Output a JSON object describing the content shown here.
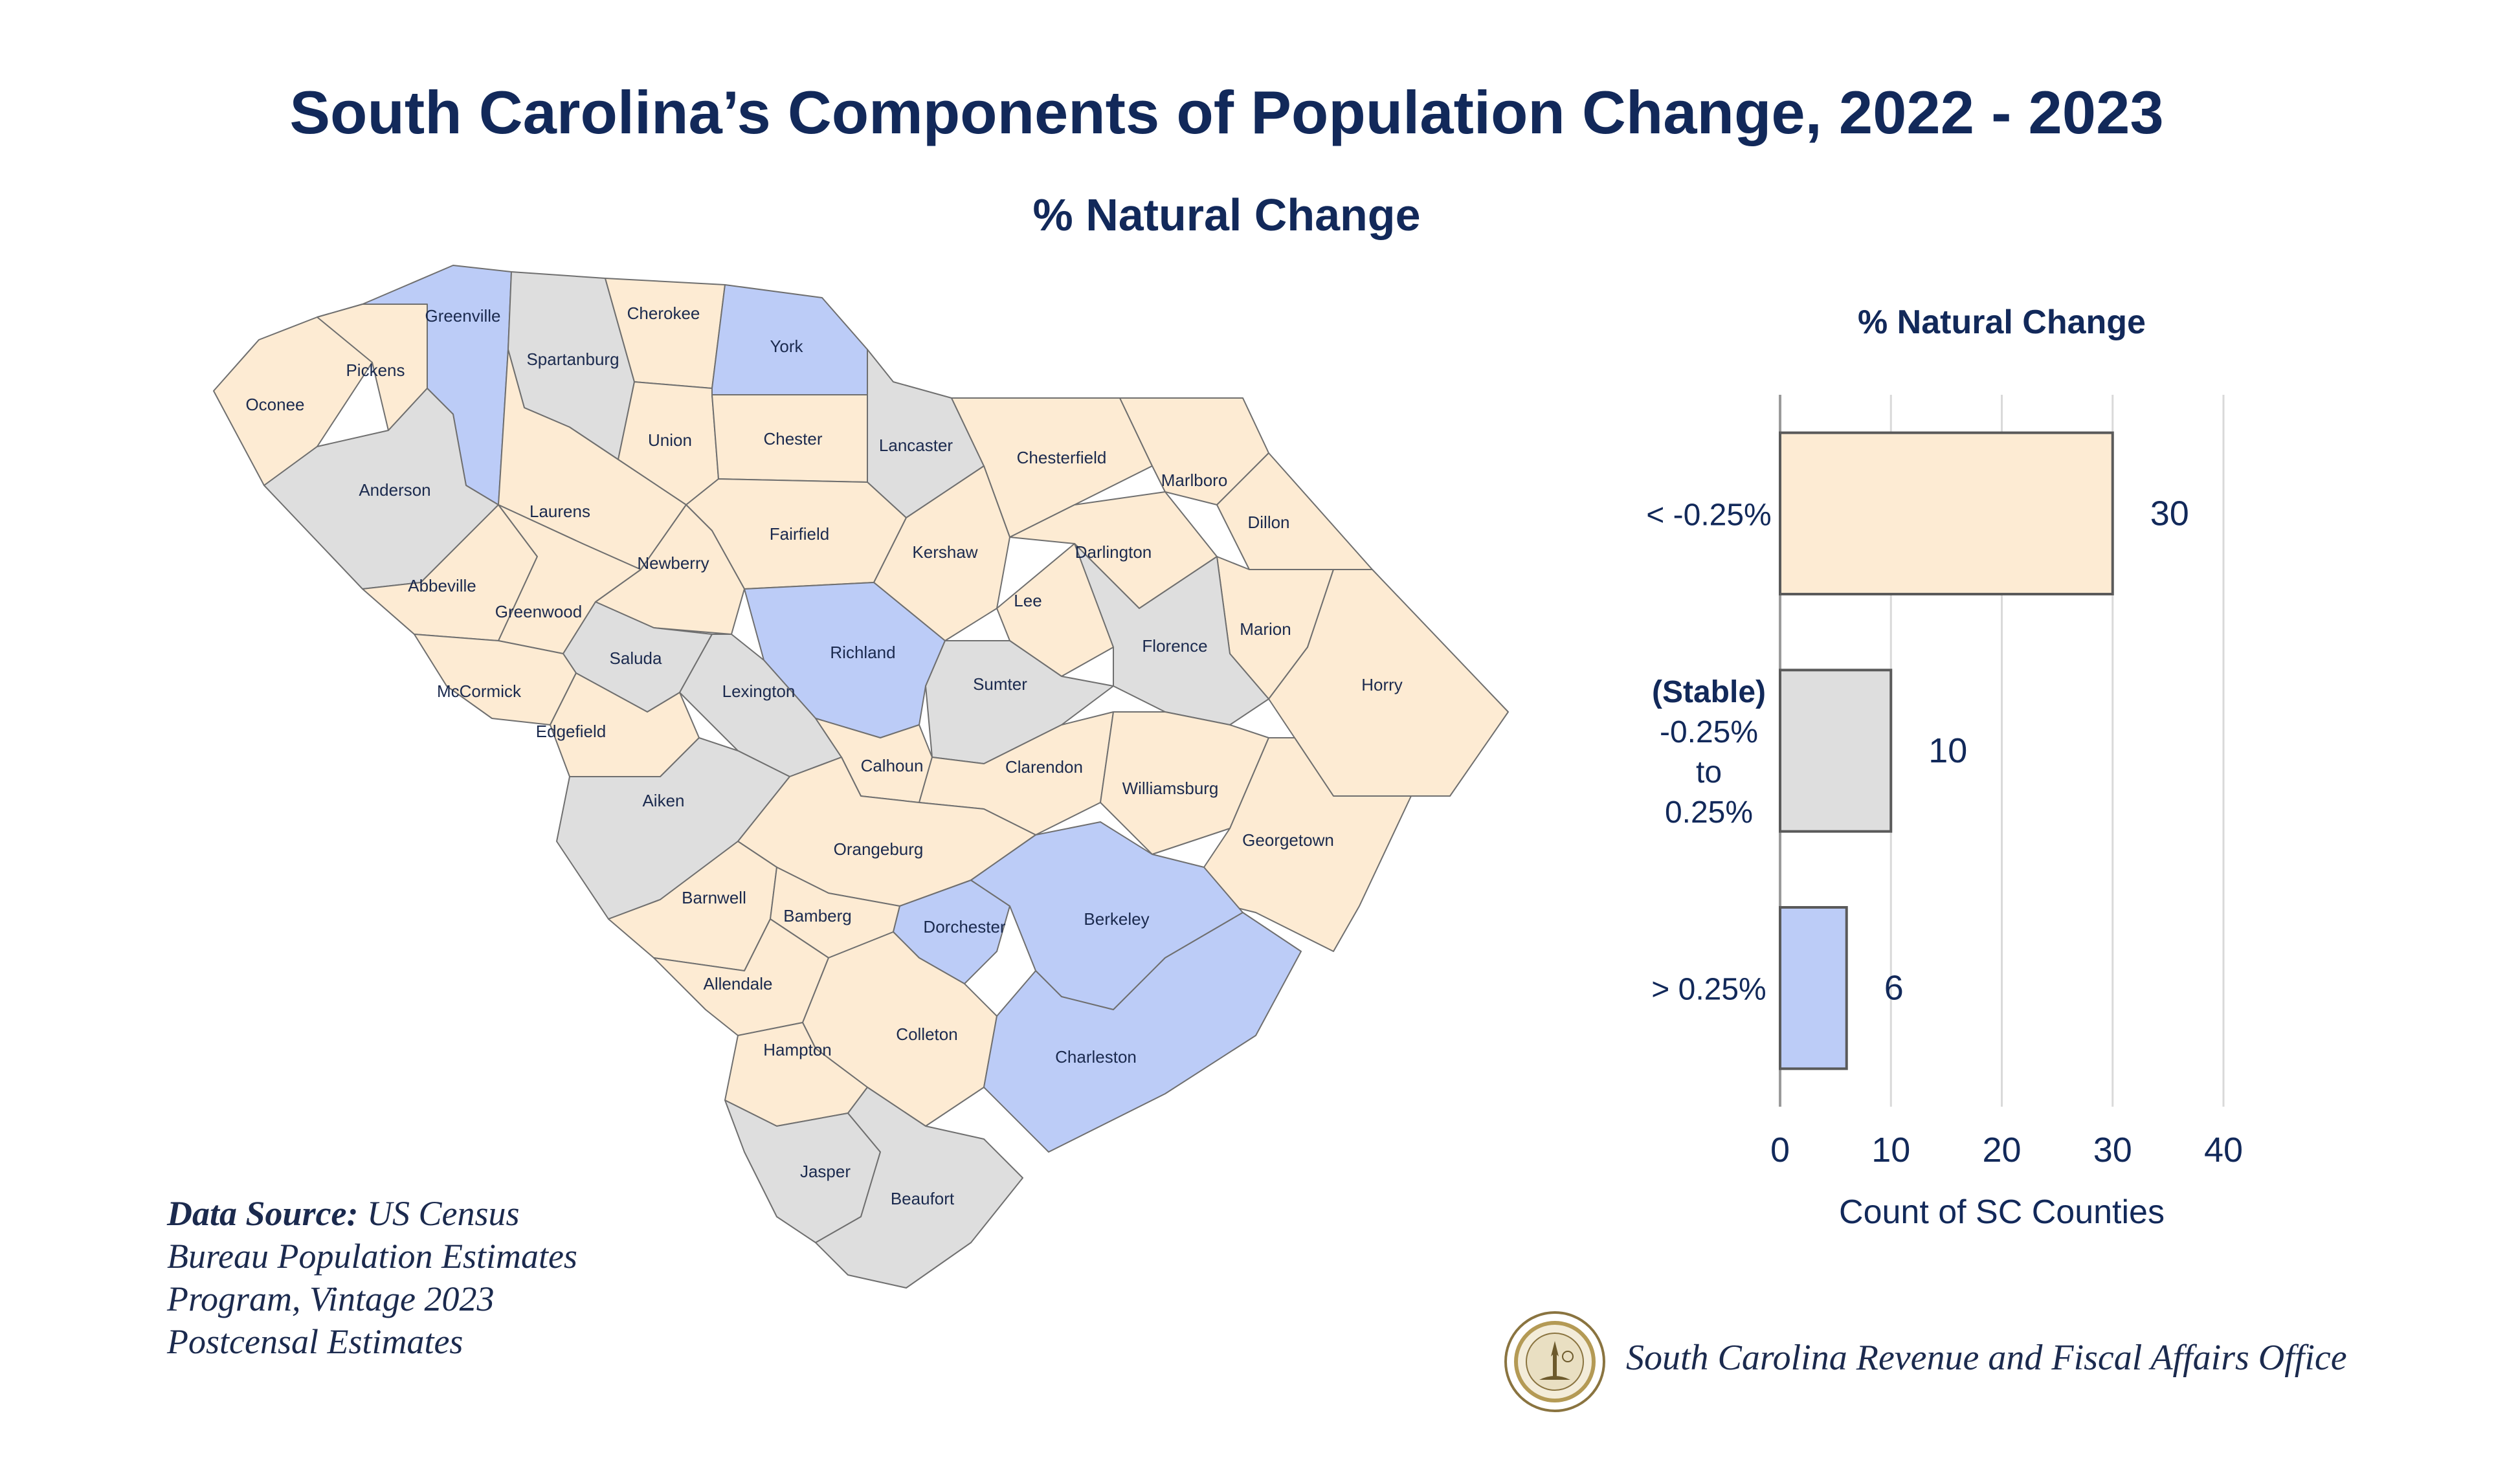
{
  "title": "South Carolina’s Components of Population Change, 2022 - 2023",
  "subtitle": "% Natural Change",
  "colors": {
    "decline": "#fdebd3",
    "stable": "#dedede",
    "growth": "#bcccf7",
    "border": "#6f6f6f",
    "text": "#12295a"
  },
  "chart_data": {
    "type": "bar",
    "orientation": "horizontal",
    "title": "% Natural Change",
    "categories": [
      "< -0.25%",
      "(Stable) -0.25% to 0.25%",
      "> 0.25%"
    ],
    "values": [
      30,
      10,
      6
    ],
    "xlabel": "Count of SC Counties",
    "ylabel": "",
    "xlim": [
      0,
      40
    ],
    "xticks": [
      "0",
      "10",
      "20",
      "30",
      "40"
    ],
    "grid": true,
    "category_labels": [
      {
        "lines": [
          "< -0.25%"
        ]
      },
      {
        "lines": [
          "(Stable)",
          "-0.25%",
          "to",
          "0.25%"
        ]
      },
      {
        "lines": [
          "> 0.25%"
        ]
      }
    ],
    "bar_colors": [
      "#fdebd3",
      "#dedede",
      "#bcccf7"
    ]
  },
  "map": {
    "counties": [
      {
        "name": "Oconee",
        "class": "decline"
      },
      {
        "name": "Pickens",
        "class": "decline"
      },
      {
        "name": "Greenville",
        "class": "growth"
      },
      {
        "name": "Spartanburg",
        "class": "stable"
      },
      {
        "name": "Cherokee",
        "class": "decline"
      },
      {
        "name": "York",
        "class": "growth"
      },
      {
        "name": "Anderson",
        "class": "stable"
      },
      {
        "name": "Union",
        "class": "decline"
      },
      {
        "name": "Chester",
        "class": "decline"
      },
      {
        "name": "Lancaster",
        "class": "stable"
      },
      {
        "name": "Chesterfield",
        "class": "decline"
      },
      {
        "name": "Marlboro",
        "class": "decline"
      },
      {
        "name": "Laurens",
        "class": "decline"
      },
      {
        "name": "Fairfield",
        "class": "decline"
      },
      {
        "name": "Kershaw",
        "class": "decline"
      },
      {
        "name": "Darlington",
        "class": "decline"
      },
      {
        "name": "Dillon",
        "class": "decline"
      },
      {
        "name": "Abbeville",
        "class": "decline"
      },
      {
        "name": "Newberry",
        "class": "decline"
      },
      {
        "name": "Greenwood",
        "class": "decline"
      },
      {
        "name": "Lee",
        "class": "decline"
      },
      {
        "name": "Marion",
        "class": "decline"
      },
      {
        "name": "Saluda",
        "class": "stable"
      },
      {
        "name": "Richland",
        "class": "growth"
      },
      {
        "name": "Florence",
        "class": "stable"
      },
      {
        "name": "Horry",
        "class": "decline"
      },
      {
        "name": "McCormick",
        "class": "decline"
      },
      {
        "name": "Lexington",
        "class": "stable"
      },
      {
        "name": "Sumter",
        "class": "stable"
      },
      {
        "name": "Edgefield",
        "class": "decline"
      },
      {
        "name": "Calhoun",
        "class": "decline"
      },
      {
        "name": "Clarendon",
        "class": "decline"
      },
      {
        "name": "Williamsburg",
        "class": "decline"
      },
      {
        "name": "Aiken",
        "class": "stable"
      },
      {
        "name": "Orangeburg",
        "class": "decline"
      },
      {
        "name": "Georgetown",
        "class": "decline"
      },
      {
        "name": "Barnwell",
        "class": "decline"
      },
      {
        "name": "Bamberg",
        "class": "decline"
      },
      {
        "name": "Dorchester",
        "class": "growth"
      },
      {
        "name": "Berkeley",
        "class": "growth"
      },
      {
        "name": "Allendale",
        "class": "decline"
      },
      {
        "name": "Colleton",
        "class": "decline"
      },
      {
        "name": "Hampton",
        "class": "decline"
      },
      {
        "name": "Charleston",
        "class": "growth"
      },
      {
        "name": "Jasper",
        "class": "stable"
      },
      {
        "name": "Beaufort",
        "class": "stable"
      }
    ]
  },
  "source": {
    "label": "Data Source:",
    "text": "US Census Bureau Population Estimates Program, Vintage 2023 Postcensal Estimates"
  },
  "agency": "South Carolina Revenue and Fiscal Affairs Office"
}
